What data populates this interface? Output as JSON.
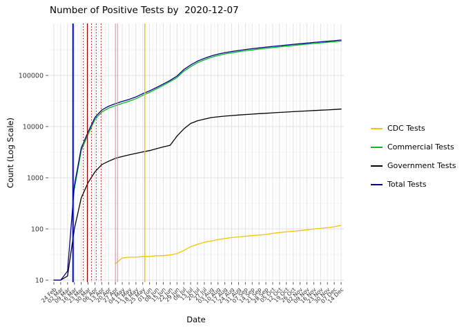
{
  "title": "Number of Positive Tests by  2020-12-07",
  "chart_data": {
    "type": "line",
    "title": "Number of Positive Tests by  2020-12-07",
    "xlabel": "Date",
    "ylabel": "Count (Log Scale)",
    "y_scale": "log10",
    "y_ticks": [
      10,
      100,
      1000,
      10000,
      100000
    ],
    "ylim": [
      10,
      600000
    ],
    "grid": true,
    "legend_position": "right",
    "categories": [
      "24 Feb",
      "02 Mar",
      "09 Mar",
      "16 Mar",
      "23 Mar",
      "30 Mar",
      "06 Apr",
      "13 Apr",
      "20 Apr",
      "27 Apr",
      "04 May",
      "11 May",
      "18 May",
      "25 May",
      "01 Jun",
      "08 Jun",
      "15 Jun",
      "22 Jun",
      "29 Jun",
      "06 Jul",
      "13 Jul",
      "20 Jul",
      "27 Jul",
      "03 Aug",
      "10 Aug",
      "17 Aug",
      "24 Aug",
      "31 Aug",
      "07 Sep",
      "14 Sep",
      "21 Sep",
      "28 Sep",
      "05 Oct",
      "12 Oct",
      "19 Oct",
      "26 Oct",
      "02 Nov",
      "09 Nov",
      "16 Nov",
      "23 Nov",
      "30 Nov",
      "07 Dec",
      "14 Dec"
    ],
    "series": [
      {
        "name": "CDC Tests",
        "color": "#F5C400",
        "values": [
          null,
          null,
          null,
          null,
          null,
          null,
          null,
          null,
          null,
          21,
          27,
          28,
          28,
          29,
          29,
          30,
          30,
          31,
          33,
          38,
          45,
          50,
          55,
          58,
          62,
          65,
          68,
          70,
          72,
          74,
          76,
          78,
          82,
          85,
          88,
          90,
          93,
          96,
          100,
          103,
          106,
          110,
          118
        ]
      },
      {
        "name": "Commercial Tests",
        "color": "#00BB22",
        "values": [
          null,
          null,
          null,
          600,
          3400,
          7000,
          13700,
          19200,
          22900,
          25600,
          28400,
          31200,
          35000,
          40800,
          46600,
          54300,
          64000,
          75700,
          90500,
          121000,
          148000,
          176500,
          200500,
          225000,
          244500,
          262000,
          276500,
          290000,
          302700,
          314400,
          326000,
          337700,
          349300,
          361000,
          372700,
          384300,
          396000,
          407700,
          419300,
          431000,
          442700,
          454300,
          468000
        ]
      },
      {
        "name": "Government Tests",
        "color": "#000000",
        "values": [
          10,
          10,
          12,
          100,
          400,
          800,
          1300,
          1800,
          2100,
          2400,
          2600,
          2800,
          3000,
          3200,
          3400,
          3700,
          4000,
          4300,
          6500,
          9000,
          11500,
          13000,
          14000,
          15000,
          15500,
          16000,
          16400,
          16800,
          17200,
          17500,
          17900,
          18200,
          18600,
          18900,
          19200,
          19600,
          19900,
          20200,
          20600,
          20900,
          21200,
          21600,
          22000
        ]
      },
      {
        "name": "Total Tests",
        "color": "#00008B",
        "values": [
          10,
          10,
          15,
          700,
          3800,
          7800,
          15000,
          21000,
          25000,
          28000,
          31000,
          34000,
          38000,
          44000,
          50000,
          58000,
          68000,
          80000,
          97000,
          130000,
          160000,
          190000,
          215000,
          240000,
          260000,
          278000,
          293000,
          307000,
          320000,
          332000,
          344000,
          356000,
          368000,
          380000,
          392000,
          404000,
          416000,
          428000,
          440000,
          452000,
          464000,
          476000,
          490000
        ]
      }
    ],
    "vlines": [
      {
        "week_index": 2.8,
        "color": "#0000DD",
        "style": "solid",
        "width": 2
      },
      {
        "week_index": 4.3,
        "color": "#8B0000",
        "style": "dotted",
        "width": 1
      },
      {
        "week_index": 4.9,
        "color": "#8B0000",
        "style": "solid",
        "width": 1.2
      },
      {
        "week_index": 5.5,
        "color": "#C00000",
        "style": "dotted",
        "width": 1
      },
      {
        "week_index": 6.2,
        "color": "#C00000",
        "style": "dotted",
        "width": 1
      },
      {
        "week_index": 6.9,
        "color": "#C00000",
        "style": "dotted",
        "width": 1
      },
      {
        "week_index": 9.0,
        "color": "#C98FA2",
        "style": "solid",
        "width": 1
      },
      {
        "week_index": 9.3,
        "color": "#C98FA2",
        "style": "solid",
        "width": 1
      },
      {
        "week_index": 13.3,
        "color": "#EFC800",
        "style": "solid",
        "width": 1.5
      }
    ]
  },
  "legend": {
    "items": [
      {
        "label": "CDC Tests"
      },
      {
        "label": "Commercial Tests"
      },
      {
        "label": "Government Tests"
      },
      {
        "label": "Total Tests"
      }
    ]
  }
}
